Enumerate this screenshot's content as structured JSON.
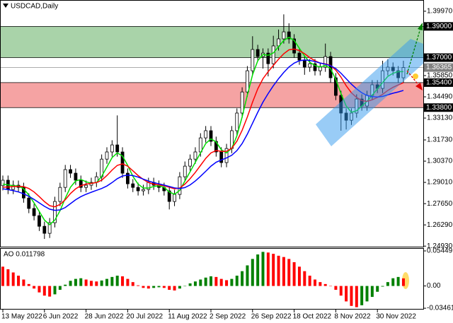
{
  "chart_data": {
    "type": "candlestick",
    "title": "USDCAD,Daily",
    "color": "#000000",
    "categories": [
      "13 May 2022",
      null,
      null,
      null,
      null,
      null,
      null,
      null,
      "6 Jun 2022",
      null,
      null,
      null,
      null,
      null,
      null,
      null,
      "28 Jun 2022",
      null,
      null,
      null,
      null,
      null,
      null,
      null,
      "20 Jul 2022",
      null,
      null,
      null,
      null,
      null,
      null,
      null,
      "11 Aug 2022",
      null,
      null,
      null,
      null,
      null,
      null,
      null,
      "2 Sep 2022",
      null,
      null,
      null,
      null,
      null,
      null,
      null,
      "26 Sep 2022",
      null,
      null,
      null,
      null,
      null,
      null,
      null,
      "18 Oct 2022",
      null,
      null,
      null,
      null,
      null,
      null,
      null,
      "8 Nov 2022",
      null,
      null,
      null,
      null,
      null,
      null,
      null,
      "30 Nov 2022",
      null,
      null,
      null,
      null,
      null
    ],
    "open": [
      1.288,
      1.2915,
      1.2856,
      1.2883,
      1.2869,
      1.2801,
      1.2734,
      1.2688,
      1.262,
      1.2575,
      1.2643,
      1.2779,
      1.2869,
      1.2983,
      1.296,
      1.2915,
      1.2869,
      1.2883,
      1.2901,
      1.2937,
      1.305,
      1.3096,
      1.3141,
      1.3096,
      1.296,
      1.2892,
      1.2869,
      1.2847,
      1.2856,
      1.2901,
      1.2883,
      1.2869,
      1.2847,
      1.2779,
      1.2824,
      1.2937,
      1.3005,
      1.305,
      1.3096,
      1.3186,
      1.3232,
      1.3164,
      1.3096,
      1.3028,
      1.3118,
      1.3232,
      1.3345,
      1.348,
      1.3616,
      1.3752,
      1.3707,
      1.3729,
      1.3661,
      1.3775,
      1.382,
      1.3865,
      1.382,
      1.3729,
      1.3684,
      1.3639,
      1.3661,
      1.3616,
      1.3639,
      1.3707,
      1.3571,
      1.3458,
      1.3345,
      1.3299,
      1.3345,
      1.3435,
      1.339,
      1.3458,
      1.3526,
      1.3503,
      1.3616,
      1.3639,
      1.3616,
      1.3571
    ],
    "high": [
      1.2945,
      1.2945,
      1.2913,
      1.2913,
      1.2899,
      1.2831,
      1.2764,
      1.2718,
      1.265,
      1.2673,
      1.2809,
      1.2899,
      1.3013,
      1.3013,
      1.299,
      1.2945,
      1.2913,
      1.2931,
      1.2967,
      1.308,
      1.3126,
      1.3171,
      1.333,
      1.3126,
      1.299,
      1.2922,
      1.2899,
      1.2886,
      1.2931,
      1.2931,
      1.2913,
      1.2899,
      1.2877,
      1.2854,
      1.2967,
      1.3035,
      1.308,
      1.3126,
      1.3216,
      1.3262,
      1.3262,
      1.3194,
      1.3126,
      1.3148,
      1.3262,
      1.3375,
      1.351,
      1.3646,
      1.3837,
      1.3782,
      1.3759,
      1.3759,
      1.384,
      1.388,
      1.3977,
      1.392,
      1.385,
      1.3759,
      1.3714,
      1.3691,
      1.3691,
      1.3669,
      1.379,
      1.3737,
      1.3601,
      1.3488,
      1.3375,
      1.3375,
      1.3465,
      1.3465,
      1.3488,
      1.3556,
      1.3556,
      1.368,
      1.369,
      1.3669,
      1.3646,
      1.368
    ],
    "low": [
      1.285,
      1.2826,
      1.2826,
      1.2839,
      1.2771,
      1.2704,
      1.2658,
      1.259,
      1.2539,
      1.2545,
      1.2613,
      1.2749,
      1.2839,
      1.293,
      1.2885,
      1.2839,
      1.2839,
      1.2853,
      1.2871,
      1.2907,
      1.302,
      1.3066,
      1.3066,
      1.293,
      1.2862,
      1.2839,
      1.2817,
      1.2817,
      1.2826,
      1.2853,
      1.2839,
      1.2817,
      1.2728,
      1.2749,
      1.2794,
      1.2907,
      1.2975,
      1.302,
      1.3066,
      1.3156,
      1.3134,
      1.3066,
      1.2998,
      1.2998,
      1.3088,
      1.3202,
      1.3315,
      1.345,
      1.3586,
      1.3677,
      1.363,
      1.358,
      1.3631,
      1.3745,
      1.379,
      1.379,
      1.3699,
      1.3654,
      1.359,
      1.3609,
      1.3586,
      1.3586,
      1.3609,
      1.3541,
      1.3428,
      1.3232,
      1.324,
      1.3269,
      1.3315,
      1.336,
      1.336,
      1.3428,
      1.3473,
      1.3473,
      1.3586,
      1.3586,
      1.3541,
      1.3541
    ],
    "close": [
      1.2915,
      1.2856,
      1.2883,
      1.2869,
      1.2801,
      1.2734,
      1.2688,
      1.262,
      1.2575,
      1.2643,
      1.2779,
      1.2869,
      1.2983,
      1.296,
      1.2915,
      1.2869,
      1.2883,
      1.2901,
      1.2937,
      1.305,
      1.3096,
      1.3141,
      1.3096,
      1.296,
      1.2892,
      1.2869,
      1.2847,
      1.2856,
      1.2901,
      1.2883,
      1.2869,
      1.2847,
      1.2779,
      1.2824,
      1.2937,
      1.3005,
      1.305,
      1.3096,
      1.3186,
      1.3232,
      1.3164,
      1.3096,
      1.3028,
      1.3118,
      1.3232,
      1.3345,
      1.348,
      1.3616,
      1.3752,
      1.3707,
      1.3729,
      1.3661,
      1.3775,
      1.382,
      1.3865,
      1.382,
      1.3729,
      1.3684,
      1.3639,
      1.3661,
      1.3616,
      1.3639,
      1.3707,
      1.3571,
      1.3458,
      1.3345,
      1.3299,
      1.3345,
      1.3435,
      1.339,
      1.3458,
      1.3526,
      1.3503,
      1.3616,
      1.3639,
      1.3616,
      1.3571,
      1.36365
    ],
    "overlays": [
      {
        "color": "#00dd00",
        "values": [
          1.289,
          1.2885,
          1.288,
          1.2878,
          1.286,
          1.282,
          1.277,
          1.2715,
          1.266,
          1.263,
          1.266,
          1.272,
          1.28,
          1.287,
          1.291,
          1.292,
          1.2905,
          1.2895,
          1.29,
          1.294,
          1.3,
          1.306,
          1.309,
          1.307,
          1.301,
          1.294,
          1.289,
          1.2865,
          1.2865,
          1.2875,
          1.288,
          1.287,
          1.284,
          1.2825,
          1.285,
          1.291,
          1.297,
          1.303,
          1.309,
          1.315,
          1.318,
          1.316,
          1.311,
          1.309,
          1.312,
          1.32,
          1.332,
          1.346,
          1.359,
          1.368,
          1.372,
          1.3715,
          1.373,
          1.377,
          1.381,
          1.383,
          1.381,
          1.376,
          1.371,
          1.367,
          1.365,
          1.364,
          1.365,
          1.363,
          1.356,
          1.347,
          1.339,
          1.335,
          1.336,
          1.339,
          1.342,
          1.346,
          1.35,
          1.354,
          1.358,
          1.36,
          1.361,
          1.361
        ]
      },
      {
        "color": "#ff0000",
        "values": [
          1.287,
          1.2872,
          1.2874,
          1.2876,
          1.2874,
          1.2862,
          1.284,
          1.281,
          1.2778,
          1.2752,
          1.2745,
          1.276,
          1.279,
          1.283,
          1.286,
          1.288,
          1.289,
          1.2895,
          1.29,
          1.2915,
          1.2945,
          1.298,
          1.301,
          1.302,
          1.3005,
          1.2975,
          1.2945,
          1.292,
          1.29,
          1.289,
          1.2885,
          1.288,
          1.287,
          1.286,
          1.2865,
          1.289,
          1.2925,
          1.2965,
          1.301,
          1.3055,
          1.309,
          1.3105,
          1.31,
          1.31,
          1.312,
          1.3165,
          1.3235,
          1.332,
          1.3415,
          1.35,
          1.3565,
          1.361,
          1.365,
          1.369,
          1.3725,
          1.375,
          1.3755,
          1.3745,
          1.3725,
          1.37,
          1.368,
          1.3665,
          1.366,
          1.365,
          1.362,
          1.3575,
          1.352,
          1.3475,
          1.3445,
          1.3425,
          1.342,
          1.343,
          1.3445,
          1.3465,
          1.349,
          1.351,
          1.3525,
          1.354
        ]
      },
      {
        "color": "#0000ff",
        "values": [
          1.286,
          1.2855,
          1.2848,
          1.284,
          1.2828,
          1.2812,
          1.2792,
          1.277,
          1.2748,
          1.273,
          1.2722,
          1.2725,
          1.274,
          1.2765,
          1.279,
          1.281,
          1.2825,
          1.2838,
          1.285,
          1.2862,
          1.2878,
          1.29,
          1.2925,
          1.2942,
          1.2948,
          1.2945,
          1.2935,
          1.2922,
          1.291,
          1.29,
          1.2892,
          1.2884,
          1.2875,
          1.2866,
          1.2862,
          1.2868,
          1.2885,
          1.291,
          1.294,
          1.2972,
          1.3005,
          1.303,
          1.3045,
          1.3058,
          1.3075,
          1.3105,
          1.315,
          1.321,
          1.328,
          1.335,
          1.3415,
          1.347,
          1.352,
          1.3565,
          1.3605,
          1.364,
          1.3665,
          1.368,
          1.3685,
          1.3682,
          1.3675,
          1.3665,
          1.3658,
          1.3648,
          1.363,
          1.36,
          1.3565,
          1.353,
          1.35,
          1.3475,
          1.3458,
          1.345,
          1.3448,
          1.3452,
          1.3462,
          1.3472,
          1.348,
          1.349
        ]
      }
    ],
    "ylim": [
      1.2485,
      1.4069
    ],
    "yticks": [
      {
        "value": 1.3997,
        "label": "1.39970"
      },
      {
        "value": 1.3585,
        "label": "1.35850"
      },
      {
        "value": 1.3449,
        "label": "1.34490"
      },
      {
        "value": 1.3313,
        "label": "1.33130"
      },
      {
        "value": 1.3173,
        "label": "1.31730"
      },
      {
        "value": 1.3037,
        "label": "1.30370"
      },
      {
        "value": 1.2901,
        "label": "1.29010"
      },
      {
        "value": 1.2765,
        "label": "1.27650"
      },
      {
        "value": 1.2629,
        "label": "1.26290"
      },
      {
        "value": 1.2493,
        "label": "1.24930"
      }
    ],
    "zones": [
      {
        "color": "#a9d3a9",
        "top": {
          "value": 1.39,
          "label": "1.39000"
        },
        "bottom": {
          "value": 1.37,
          "label": "1.37000"
        }
      },
      {
        "color": "#f5a3a3",
        "top": {
          "value": 1.354,
          "label": "1.35400"
        },
        "bottom": {
          "value": 1.338,
          "label": "1.33800"
        }
      }
    ],
    "last_price": {
      "value": 1.36365,
      "label": "1.36365"
    },
    "indicator": {
      "type": "histogram",
      "title": "AO 0.011798",
      "up_color": "#008000",
      "down_color": "#ff0000",
      "values": [
        0.03,
        0.026,
        0.021,
        0.016,
        0.01,
        0.003,
        -0.004,
        -0.01,
        -0.015,
        -0.0165,
        -0.013,
        -0.006,
        0.002,
        0.008,
        0.011,
        0.012,
        0.01,
        0.008,
        0.007,
        0.0085,
        0.011,
        0.014,
        0.016,
        0.015,
        0.011,
        0.006,
        0.001,
        -0.003,
        -0.004,
        -0.003,
        -0.002,
        -0.003,
        -0.006,
        -0.007,
        -0.004,
        0.0,
        0.004,
        0.007,
        0.01,
        0.013,
        0.015,
        0.014,
        0.011,
        0.009,
        0.011,
        0.016,
        0.023,
        0.032,
        0.042,
        0.049,
        0.053,
        0.052,
        0.05,
        0.047,
        0.045,
        0.042,
        0.037,
        0.03,
        0.023,
        0.016,
        0.01,
        0.006,
        0.003,
        0.0,
        -0.006,
        -0.015,
        -0.024,
        -0.031,
        -0.033,
        -0.03,
        -0.024,
        -0.017,
        -0.009,
        -0.001,
        0.006,
        0.012,
        0.014,
        0.011798
      ],
      "ylim": [
        -0.0367,
        0.0589
      ],
      "yticks": [
        0.05449,
        {
          "value": 0,
          "label": "0.00"
        },
        -0.034616
      ]
    }
  }
}
